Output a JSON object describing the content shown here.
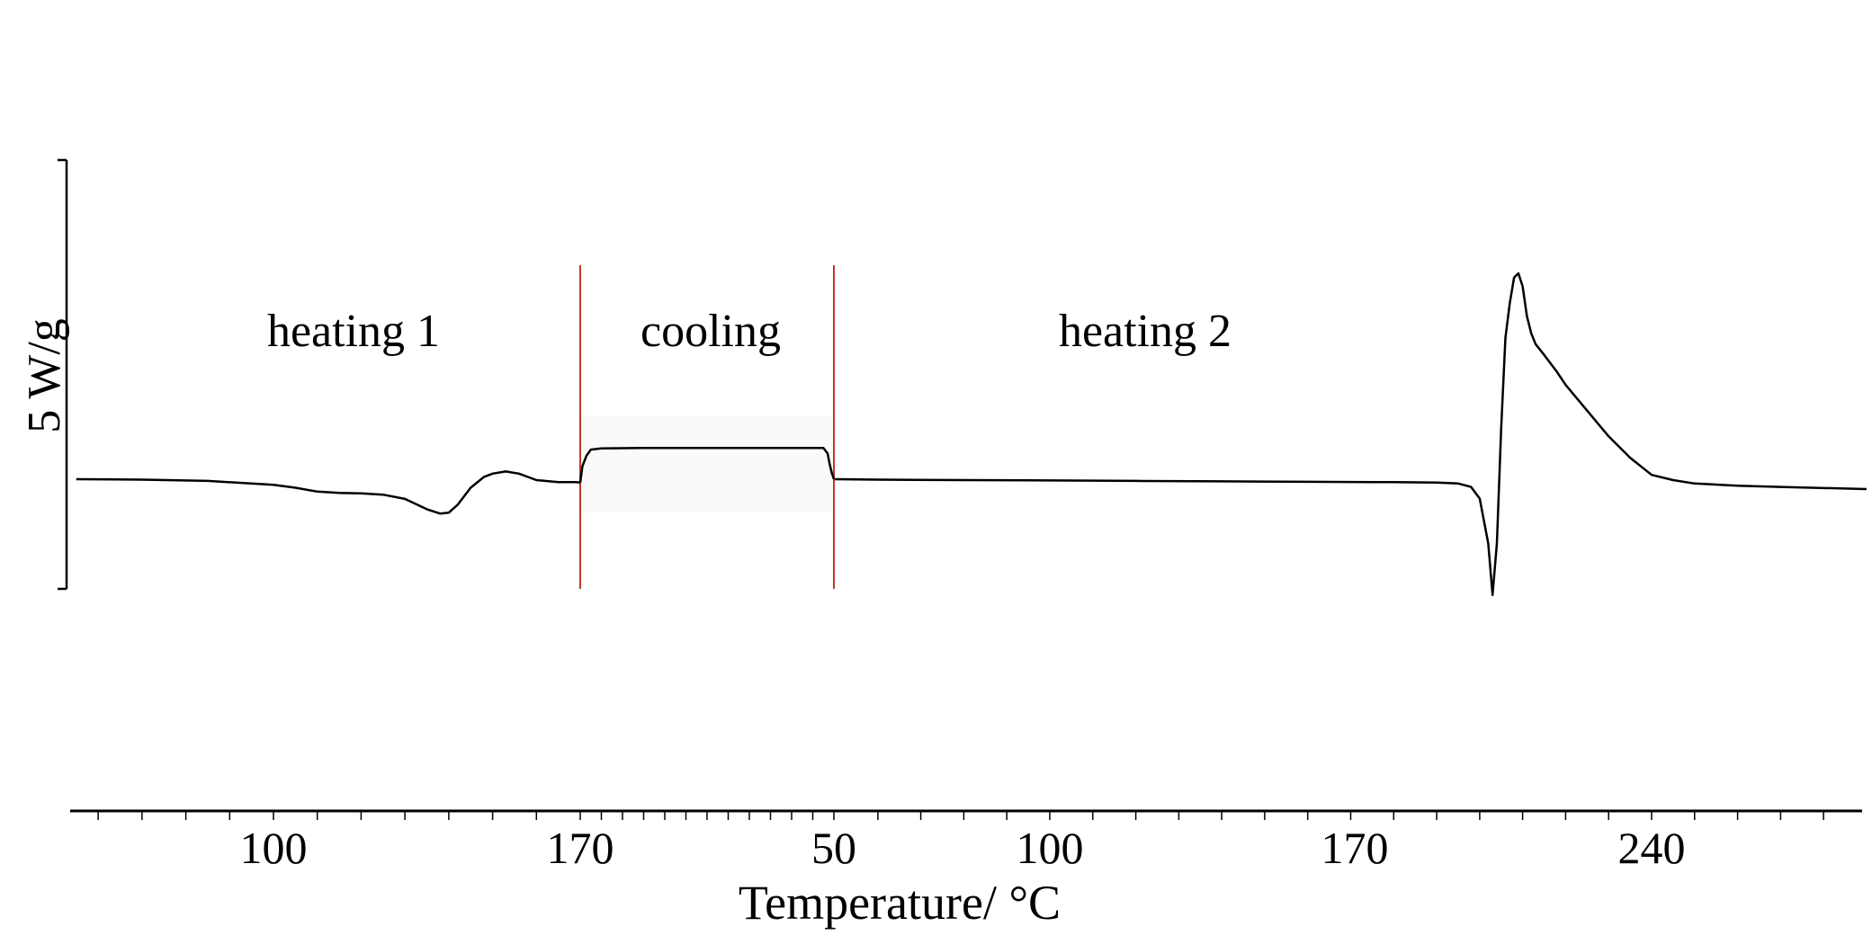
{
  "chart_data": {
    "type": "line",
    "title": "",
    "xlabel": "Temperature/ °C",
    "ylabel": "",
    "scale_bar_label": "5 W/g",
    "grid": false,
    "legend": "none",
    "x_tick_labels": [
      "100",
      "170",
      "50",
      "100",
      "170",
      "240"
    ],
    "segments": [
      {
        "label": "heating 1",
        "direction": "increasing",
        "x_range": [
          55,
          170
        ]
      },
      {
        "label": "cooling",
        "direction": "decreasing",
        "x_range": [
          170,
          50
        ]
      },
      {
        "label": "heating 2",
        "direction": "increasing",
        "x_range": [
          50,
          290
        ]
      }
    ],
    "divider_color": "#c0392b",
    "line_color": "#000000",
    "series": [
      {
        "segment": "heating 1",
        "x": [
          55,
          70,
          85,
          100,
          105,
          110,
          115,
          120,
          125,
          130,
          135,
          138,
          140,
          142,
          145,
          148,
          150,
          153,
          156,
          160,
          165,
          169,
          170
        ],
        "y": [
          0.0,
          -0.01,
          -0.04,
          -0.13,
          -0.2,
          -0.29,
          -0.32,
          -0.33,
          -0.36,
          -0.46,
          -0.7,
          -0.8,
          -0.78,
          -0.6,
          -0.2,
          0.05,
          0.13,
          0.18,
          0.13,
          -0.02,
          -0.07,
          -0.07,
          -0.08
        ]
      },
      {
        "segment": "cooling",
        "x": [
          170,
          169,
          167,
          165,
          160,
          140,
          120,
          100,
          80,
          60,
          55,
          53,
          52,
          51,
          50
        ],
        "y": [
          -0.08,
          0.3,
          0.55,
          0.69,
          0.72,
          0.73,
          0.73,
          0.73,
          0.73,
          0.73,
          0.73,
          0.6,
          0.35,
          0.15,
          0.0
        ]
      },
      {
        "segment": "heating 2",
        "x": [
          50,
          60,
          80,
          100,
          120,
          140,
          160,
          180,
          190,
          195,
          198,
          200,
          202,
          203,
          204,
          205,
          206,
          207,
          208,
          209,
          210,
          211,
          212,
          213,
          215,
          218,
          220,
          225,
          230,
          235,
          240,
          245,
          250,
          260,
          270,
          290
        ],
        "y": [
          0.0,
          -0.01,
          -0.02,
          -0.03,
          -0.04,
          -0.05,
          -0.06,
          -0.07,
          -0.08,
          -0.1,
          -0.18,
          -0.45,
          -1.5,
          -2.7,
          -1.5,
          1.2,
          3.3,
          4.1,
          4.7,
          4.8,
          4.5,
          3.8,
          3.4,
          3.15,
          2.9,
          2.5,
          2.2,
          1.6,
          1.0,
          0.5,
          0.1,
          -0.02,
          -0.1,
          -0.15,
          -0.18,
          -0.23
        ]
      }
    ]
  }
}
